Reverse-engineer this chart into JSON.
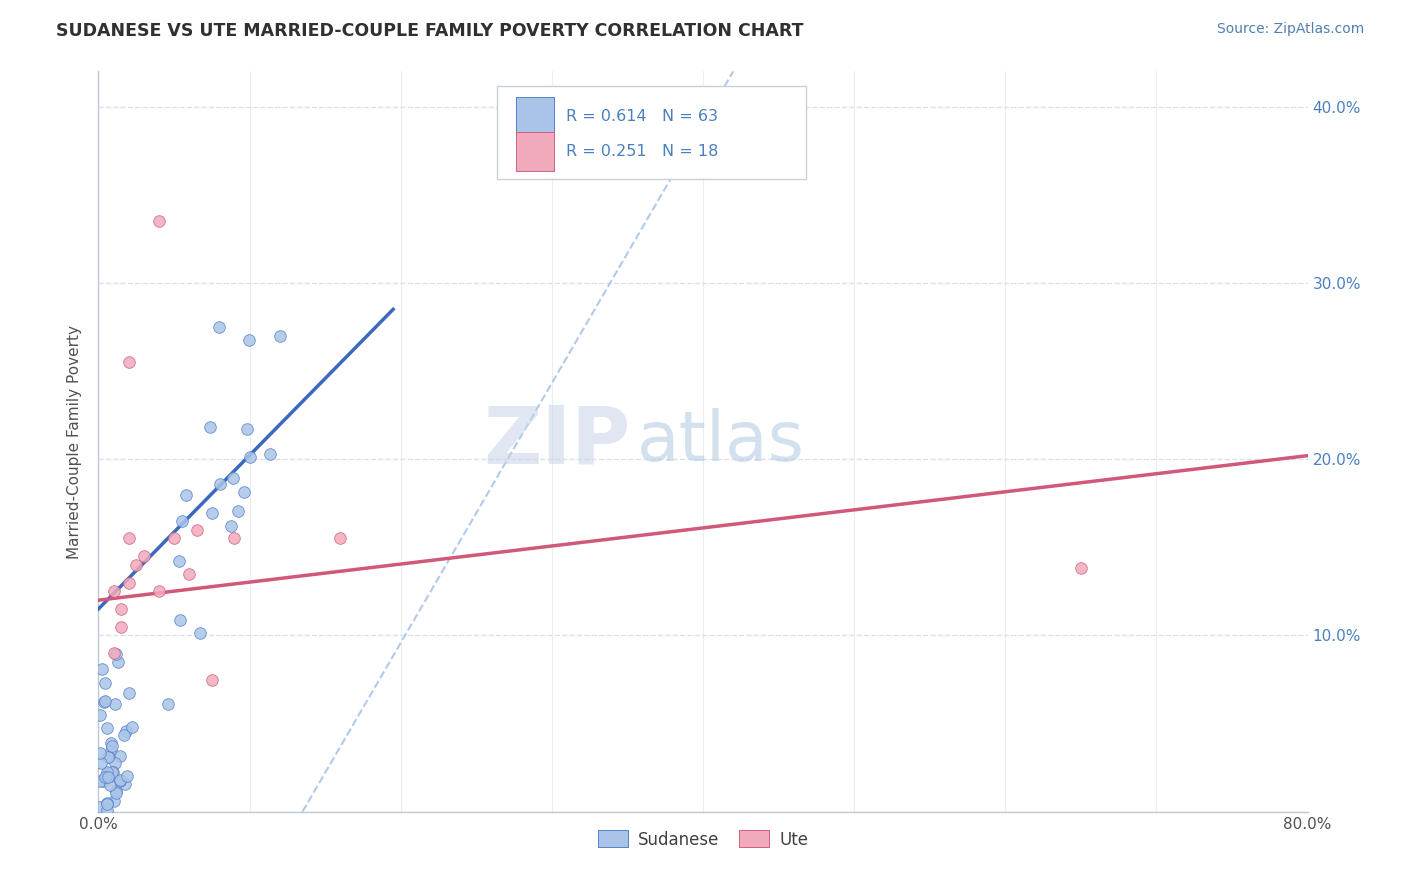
{
  "title": "SUDANESE VS UTE MARRIED-COUPLE FAMILY POVERTY CORRELATION CHART",
  "source": "Source: ZipAtlas.com",
  "ylabel": "Married-Couple Family Poverty",
  "xlim": [
    0.0,
    0.8
  ],
  "ylim": [
    0.0,
    0.42
  ],
  "xticks": [
    0.0,
    0.1,
    0.2,
    0.3,
    0.4,
    0.5,
    0.6,
    0.7,
    0.8
  ],
  "yticks": [
    0.0,
    0.1,
    0.2,
    0.3,
    0.4
  ],
  "sudanese_color": "#aac4e8",
  "ute_color": "#f0aabb",
  "sudanese_edge": "#5580c8",
  "ute_edge": "#d06080",
  "sudanese_line_color": "#3a6abf",
  "ute_line_color": "#d05878",
  "ref_line_color": "#aac4e8",
  "grid_color": "#d8dde8",
  "background_color": "#ffffff",
  "watermark_ZIP": "ZIP",
  "watermark_atlas": "atlas",
  "watermark_ZIP_color": "#c8d4e8",
  "watermark_atlas_color": "#b0c8e0",
  "sud_line_x0": 0.0,
  "sud_line_y0": 0.115,
  "sud_line_x1": 0.195,
  "sud_line_y1": 0.285,
  "ute_line_x0": 0.0,
  "ute_line_y0": 0.12,
  "ute_line_x1": 0.8,
  "ute_line_y1": 0.202,
  "ref_line_x0": 0.135,
  "ref_line_y0": 0.0,
  "ref_line_x1": 0.42,
  "ref_line_y1": 0.42
}
